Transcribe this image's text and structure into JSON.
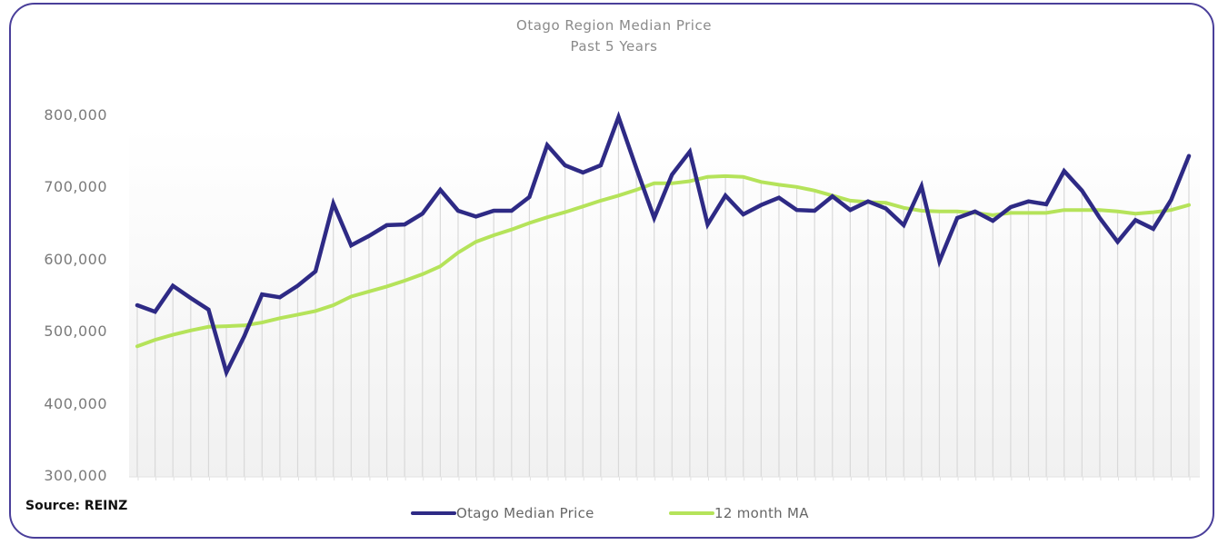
{
  "chart_data": {
    "type": "line",
    "title": "Otago Region Median Price",
    "subtitle": "Past 5 Years",
    "xlabel": "",
    "ylabel": "",
    "ylim": [
      300000,
      800000
    ],
    "yticks": [
      800000,
      700000,
      600000,
      500000,
      400000,
      300000
    ],
    "ytick_labels": [
      "800,000",
      "700,000",
      "600,000",
      "500,000",
      "400,000",
      "300,000"
    ],
    "grid": "vertical",
    "legend_position": "bottom",
    "x": [
      1,
      2,
      3,
      4,
      5,
      6,
      7,
      8,
      9,
      10,
      11,
      12,
      13,
      14,
      15,
      16,
      17,
      18,
      19,
      20,
      21,
      22,
      23,
      24,
      25,
      26,
      27,
      28,
      29,
      30,
      31,
      32,
      33,
      34,
      35,
      36,
      37,
      38,
      39,
      40,
      41,
      42,
      43,
      44,
      45,
      46,
      47,
      48,
      49,
      50,
      51,
      52,
      53,
      54,
      55,
      56,
      57,
      58,
      59,
      60
    ],
    "series": [
      {
        "name": "Otago Median Price",
        "color": "#2e2a85",
        "values": [
          538000,
          529000,
          565000,
          548000,
          532000,
          445000,
          495000,
          553000,
          549000,
          565000,
          585000,
          679000,
          621000,
          634000,
          649000,
          650000,
          665000,
          698000,
          669000,
          661000,
          669000,
          669000,
          688000,
          760000,
          732000,
          722000,
          732000,
          799000,
          728000,
          659000,
          719000,
          751000,
          650000,
          690000,
          664000,
          677000,
          687000,
          670000,
          669000,
          689000,
          670000,
          682000,
          672000,
          649000,
          703000,
          599000,
          659000,
          668000,
          655000,
          674000,
          682000,
          678000,
          724000,
          697000,
          659000,
          626000,
          656000,
          644000,
          684000,
          745000
        ]
      },
      {
        "name": "12 month MA",
        "color": "#b5e35a",
        "values": [
          481000,
          490000,
          497000,
          503000,
          508000,
          509000,
          510000,
          514000,
          520000,
          525000,
          530000,
          538000,
          550000,
          557000,
          564000,
          572000,
          581000,
          592000,
          611000,
          626000,
          635000,
          643000,
          652000,
          660000,
          667000,
          675000,
          683000,
          690000,
          698000,
          707000,
          707000,
          710000,
          716000,
          717000,
          716000,
          709000,
          705000,
          702000,
          697000,
          690000,
          683000,
          681000,
          680000,
          673000,
          669000,
          668000,
          668000,
          666000,
          663000,
          666000,
          666000,
          666000,
          670000,
          670000,
          670000,
          668000,
          665000,
          667000,
          670000,
          677000
        ]
      }
    ],
    "source": "Source: REINZ"
  }
}
